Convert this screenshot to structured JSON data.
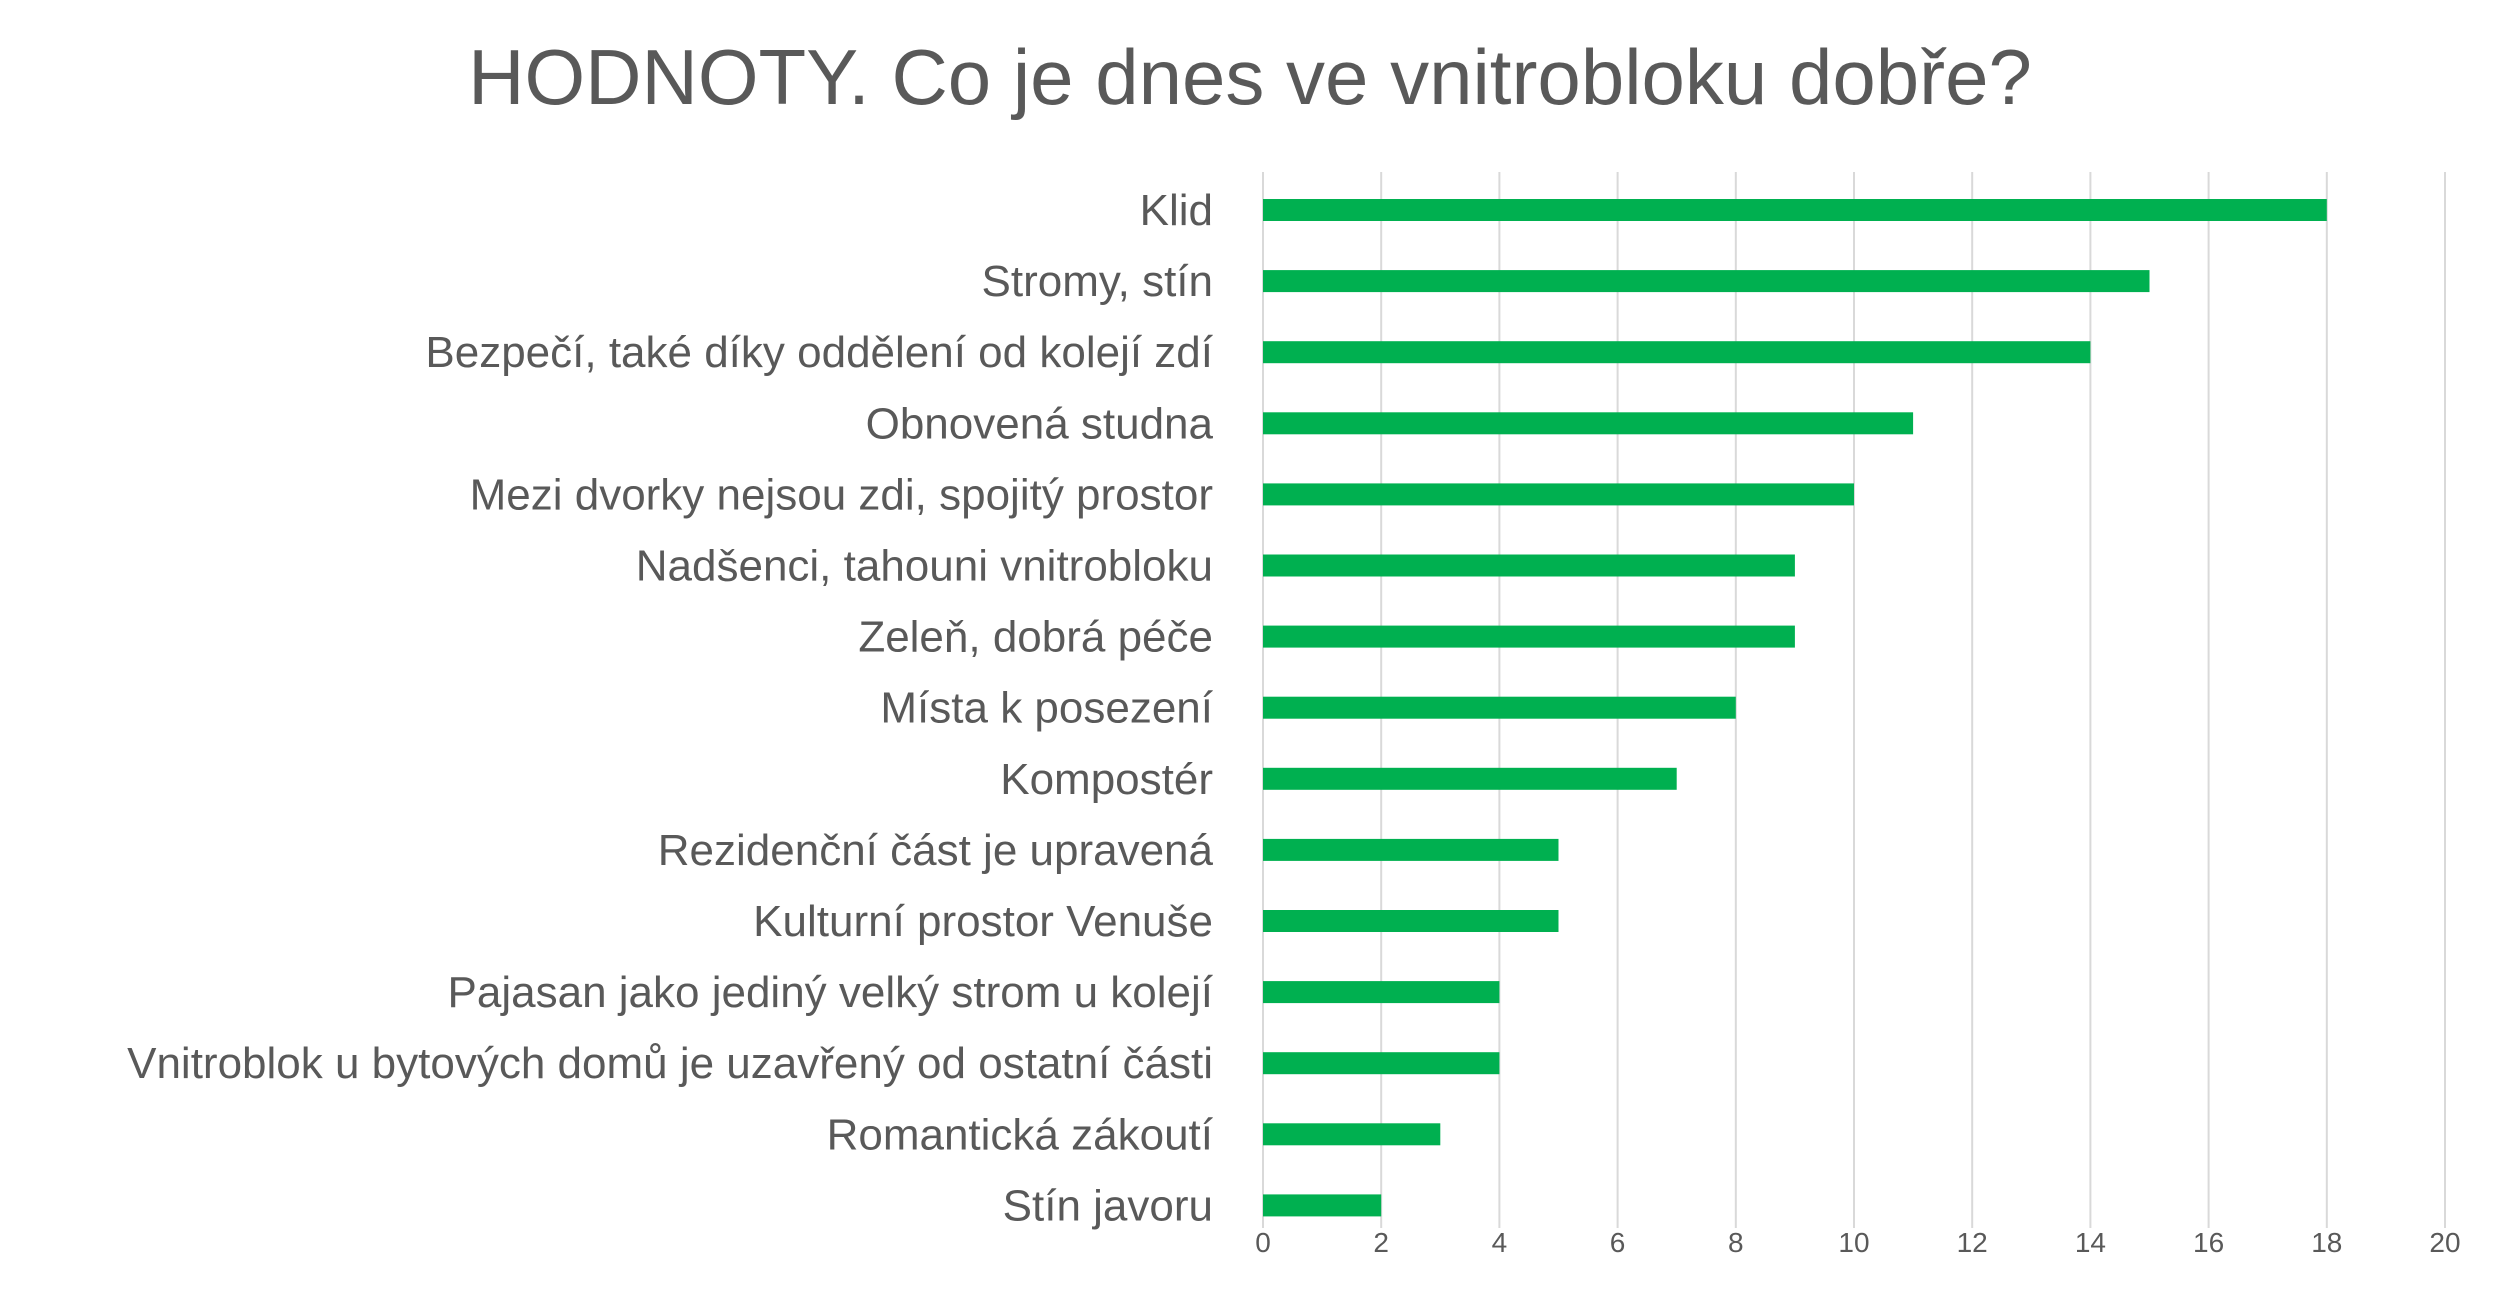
{
  "chart_data": {
    "type": "bar",
    "orientation": "horizontal",
    "title": "HODNOTY. Co je dnes ve vnitrobloku dobře?",
    "xlabel": "",
    "ylabel": "",
    "xlim": [
      0,
      20
    ],
    "ticks": [
      0,
      2,
      4,
      6,
      8,
      10,
      12,
      14,
      16,
      18,
      20
    ],
    "grid": true,
    "legend": "none",
    "bar_color": "#00B050",
    "categories": [
      "Klid",
      "Stromy, stín",
      "Bezpečí, také díky oddělení od kolejí zdí",
      "Obnovená studna",
      "Mezi dvorky nejsou zdi, spojitý prostor",
      "Nadšenci, tahouni vnitrobloku",
      "Zeleň, dobrá péče",
      "Místa k posezení",
      "Kompostér",
      "Rezidenční část je upravená",
      "Kulturní prostor Venuše",
      "Pajasan jako jediný velký strom u kolejí",
      "Vnitroblok u bytových domů je uzavřený od ostatní části",
      "Romantická zákoutí",
      "Stín javoru"
    ],
    "values": [
      18,
      15,
      14,
      11,
      10,
      9,
      9,
      8,
      7,
      5,
      5,
      4,
      4,
      3,
      2
    ]
  }
}
